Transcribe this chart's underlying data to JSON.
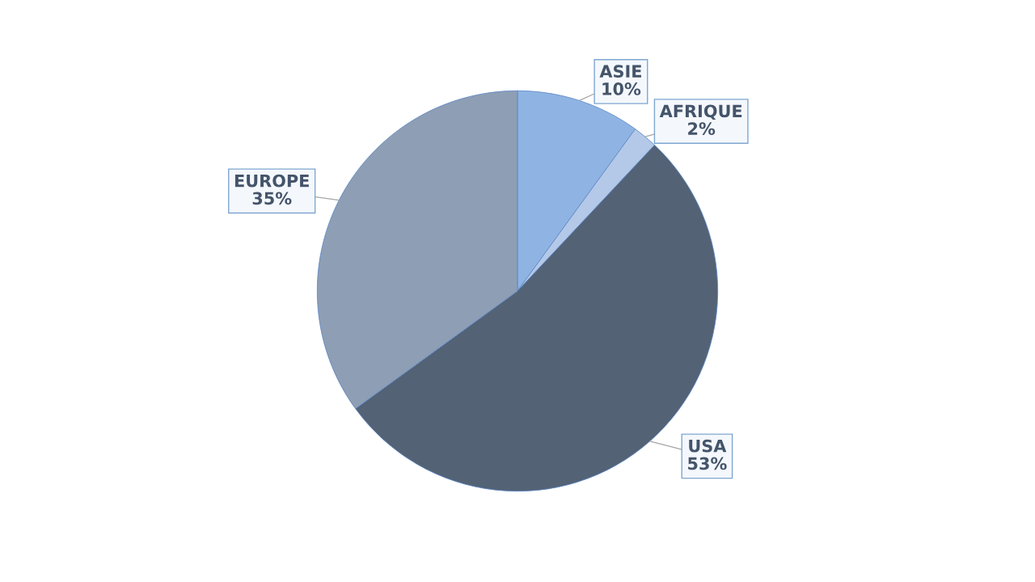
{
  "chart_data": {
    "type": "pie",
    "categories": [
      "ASIE",
      "AFRIQUE",
      "USA",
      "EUROPE"
    ],
    "values": [
      10,
      2,
      53,
      35
    ],
    "value_labels": [
      "10%",
      "2%",
      "53%",
      "35%"
    ],
    "colors": [
      "#8fb4e3",
      "#b4c8e8",
      "#536275",
      "#8e9eb4"
    ]
  }
}
